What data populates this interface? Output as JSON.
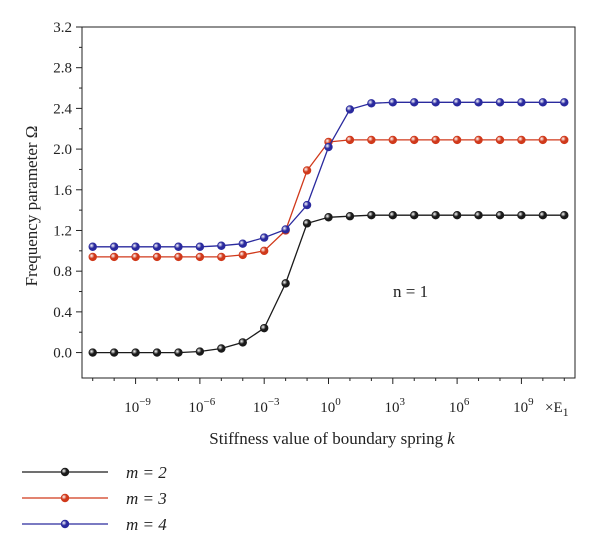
{
  "chart_data": {
    "type": "line",
    "xlabel": "Stiffness value of boundary spring",
    "xlabel_var": "k",
    "ylabel": "Frequency parameter Ω",
    "x_scale": "log10",
    "x_multiplier_label": "×E",
    "x_multiplier_sub": "1",
    "xlim": [
      -11.5,
      11.5
    ],
    "ylim": [
      -0.25,
      3.2
    ],
    "x_ticks": [
      -9,
      -6,
      -3,
      0,
      3,
      6,
      9
    ],
    "x_tick_base": "10",
    "x_tick_exponents": [
      "−9",
      "−6",
      "−3",
      "0",
      "3",
      "6",
      "9"
    ],
    "y_ticks": [
      0.0,
      0.4,
      0.8,
      1.2,
      1.6,
      2.0,
      2.4,
      2.8,
      3.2
    ],
    "y_tick_labels": [
      "0.0",
      "0.4",
      "0.8",
      "1.2",
      "1.6",
      "2.0",
      "2.4",
      "2.8",
      "3.2"
    ],
    "grid": false,
    "legend_position": "below-left",
    "annotation": "n = 1",
    "x": [
      -11,
      -10,
      -9,
      -8,
      -7,
      -6,
      -5,
      -4,
      -3,
      -2,
      -1,
      0,
      1,
      2,
      3,
      4,
      5,
      6,
      7,
      8,
      9,
      10,
      11
    ],
    "series": [
      {
        "name": "m = 2",
        "color": "#1a1a1a",
        "values": [
          0.0,
          0.0,
          0.0,
          0.0,
          0.0,
          0.01,
          0.04,
          0.1,
          0.24,
          0.68,
          1.27,
          1.33,
          1.34,
          1.35,
          1.35,
          1.35,
          1.35,
          1.35,
          1.35,
          1.35,
          1.35,
          1.35,
          1.35
        ]
      },
      {
        "name": "m = 3",
        "color": "#d0391b",
        "values": [
          0.94,
          0.94,
          0.94,
          0.94,
          0.94,
          0.94,
          0.94,
          0.96,
          1.0,
          1.2,
          1.79,
          2.07,
          2.09,
          2.09,
          2.09,
          2.09,
          2.09,
          2.09,
          2.09,
          2.09,
          2.09,
          2.09,
          2.09
        ]
      },
      {
        "name": "m = 4",
        "color": "#2a2a9e",
        "values": [
          1.04,
          1.04,
          1.04,
          1.04,
          1.04,
          1.04,
          1.05,
          1.07,
          1.13,
          1.21,
          1.45,
          2.02,
          2.39,
          2.45,
          2.46,
          2.46,
          2.46,
          2.46,
          2.46,
          2.46,
          2.46,
          2.46,
          2.46
        ]
      }
    ]
  }
}
